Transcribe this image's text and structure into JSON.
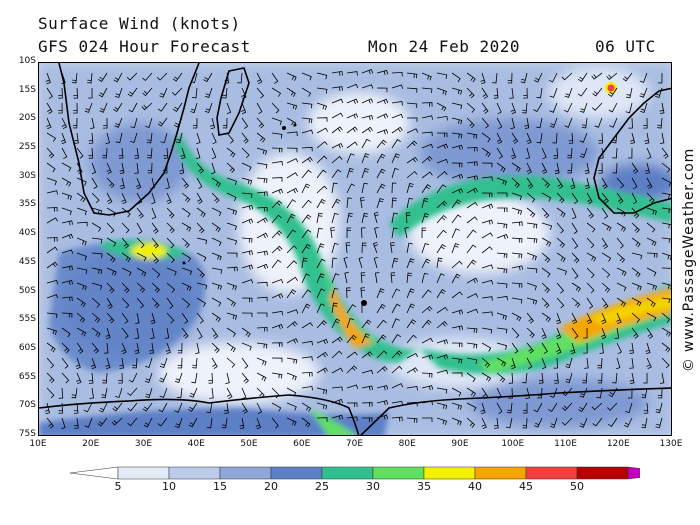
{
  "header": {
    "title_line1": "Surface Wind (knots)",
    "title_line2": "GFS 024 Hour Forecast",
    "date": "Mon 24 Feb 2020",
    "time": "06 UTC"
  },
  "credit": "© www.PassageWeather.com",
  "map": {
    "lat_labels": [
      "10S",
      "15S",
      "20S",
      "25S",
      "30S",
      "35S",
      "40S",
      "45S",
      "50S",
      "55S",
      "60S",
      "65S",
      "70S",
      "75S"
    ],
    "lon_labels": [
      "10E",
      "20E",
      "30E",
      "40E",
      "50E",
      "60E",
      "70E",
      "80E",
      "90E",
      "100E",
      "110E",
      "120E",
      "130E"
    ],
    "features": [
      "africa-coast",
      "madagascar",
      "australia-coast",
      "antarctica-coast",
      "kerguelen-islands",
      "tropical-cyclone-marker"
    ]
  },
  "colorbar": {
    "labels": [
      "5",
      "10",
      "15",
      "20",
      "25",
      "30",
      "35",
      "40",
      "45",
      "50"
    ],
    "colors": [
      "#ffffff",
      "#e4ebf8",
      "#bccbea",
      "#8ea6d8",
      "#5d7fc6",
      "#30c090",
      "#60e060",
      "#f2f200",
      "#f7a500",
      "#f24040",
      "#b50000",
      "#c000c0"
    ]
  }
}
